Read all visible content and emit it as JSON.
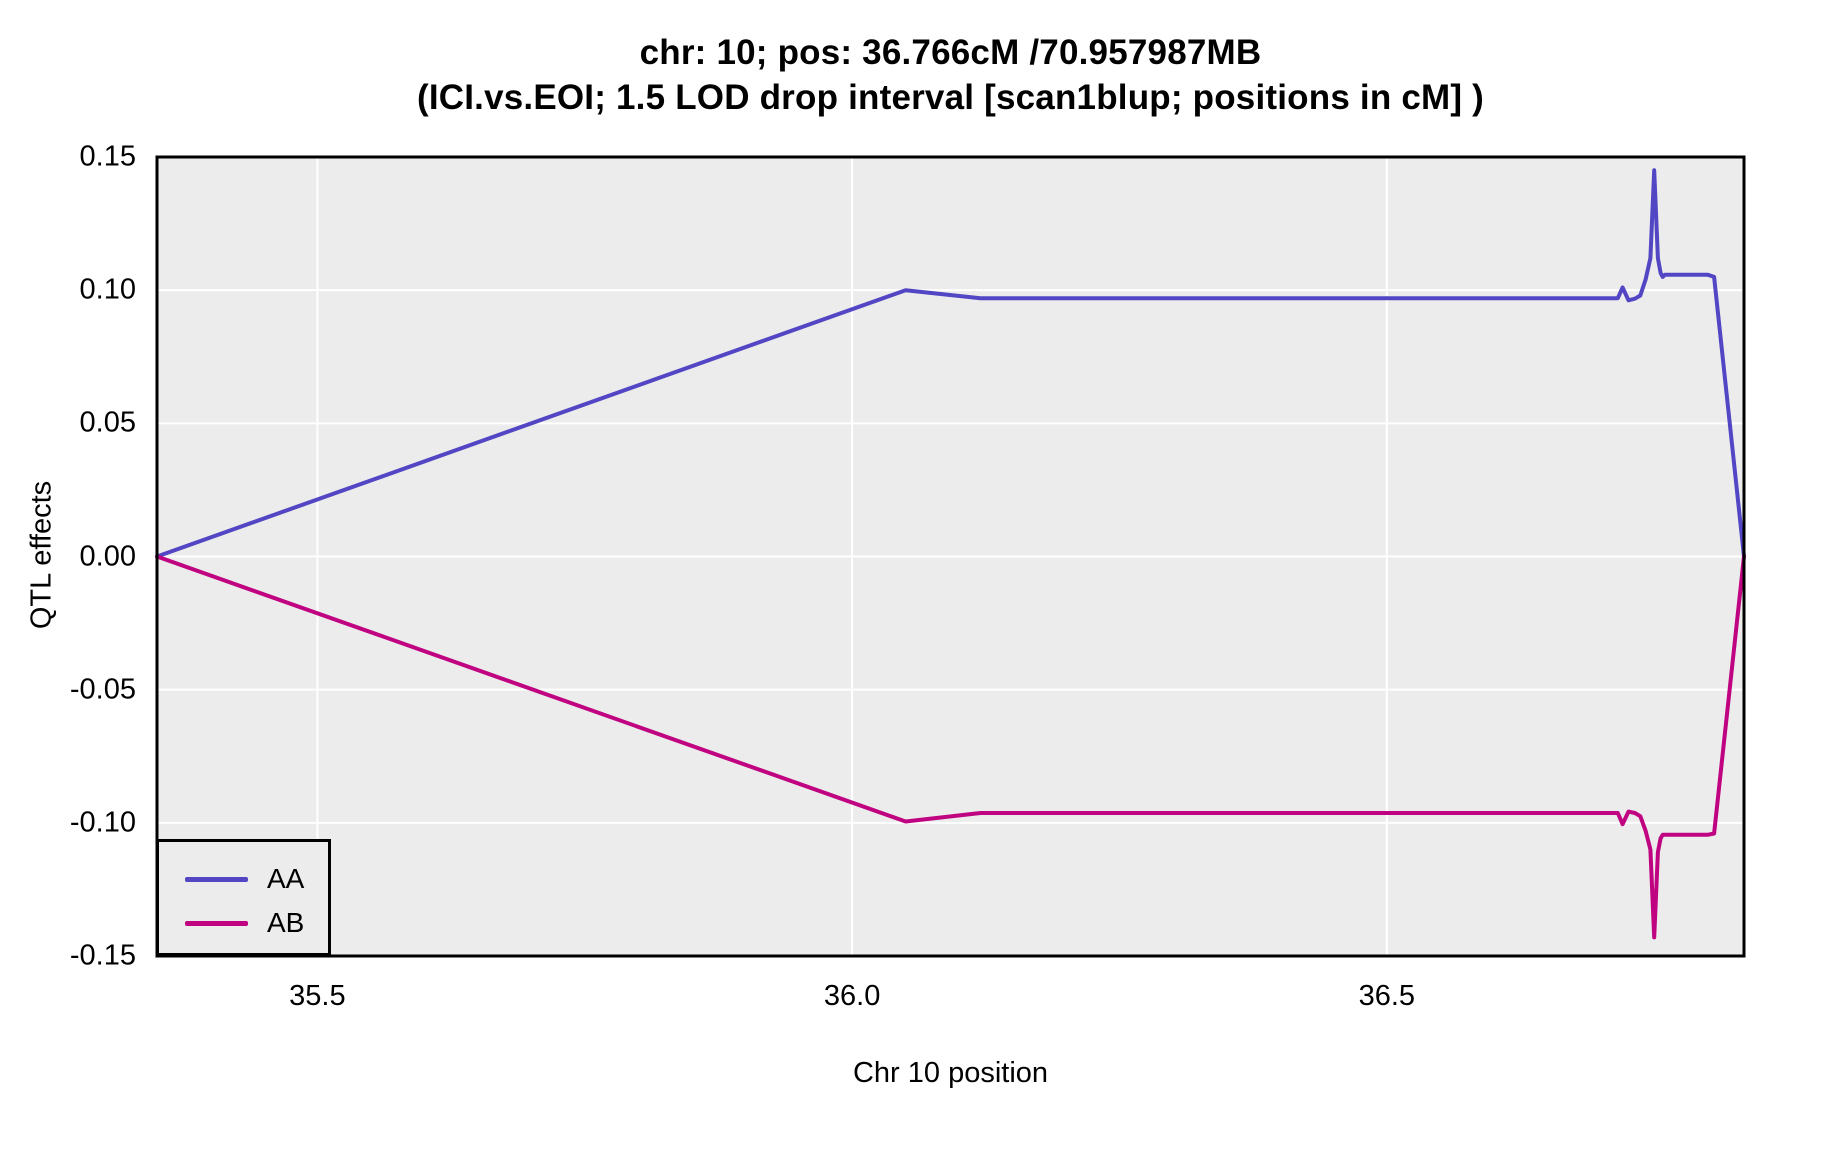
{
  "titles": {
    "line1": "chr: 10; pos: 36.766cM /70.957987MB",
    "line2": "(ICI.vs.EOI; 1.5 LOD drop interval [scan1blup; positions in cM] )"
  },
  "axes": {
    "x": {
      "label": "Chr 10 position",
      "ticks": [
        35.5,
        36.0,
        36.5
      ],
      "tick_labels": [
        "35.5",
        "36.0",
        "36.5"
      ]
    },
    "y": {
      "label": "QTL effects",
      "ticks": [
        0.15,
        0.1,
        0.05,
        0.0,
        -0.05,
        -0.1,
        -0.15
      ],
      "tick_labels": [
        "0.15",
        "0.10",
        "0.05",
        "0.00",
        "-0.05",
        "-0.10",
        "-0.15"
      ]
    }
  },
  "legend": {
    "items": [
      {
        "label": "AA",
        "color": "#5246C4"
      },
      {
        "label": "AB",
        "color": "#C00380"
      }
    ]
  },
  "colors": {
    "page_bg": "#FFFFFF",
    "panel_bg": "#ECECEC",
    "grid": "#FFFFFF",
    "border": "#000000",
    "text": "#000000",
    "series_aa": "#5246C4",
    "series_ab": "#C00380"
  },
  "chart_data": {
    "type": "line",
    "title": "chr: 10; pos: 36.766cM /70.957987MB",
    "subtitle": "(ICI.vs.EOI; 1.5 LOD drop interval [scan1blup; positions in cM] )",
    "xlabel": "Chr 10 position",
    "ylabel": "QTL effects",
    "xlim": [
      35.35,
      36.834
    ],
    "ylim": [
      -0.15,
      0.15
    ],
    "grid": "major-only, white lines on gray panel",
    "legend_position": "bottom-left",
    "series": [
      {
        "name": "AA",
        "color": "#5246C4",
        "x": [
          35.35,
          36.05,
          36.12,
          36.7,
          36.716,
          36.7205,
          36.726,
          36.732,
          36.737,
          36.742,
          36.7465,
          36.75,
          36.7535,
          36.756,
          36.758,
          36.76,
          36.8,
          36.806,
          36.834
        ],
        "y": [
          0.0,
          0.1,
          0.097,
          0.097,
          0.097,
          0.101,
          0.0962,
          0.0968,
          0.098,
          0.104,
          0.112,
          0.145,
          0.112,
          0.1065,
          0.105,
          0.1058,
          0.1058,
          0.105,
          0.0
        ]
      },
      {
        "name": "AB",
        "color": "#C00380",
        "x": [
          35.35,
          36.05,
          36.12,
          36.7,
          36.716,
          36.7205,
          36.726,
          36.732,
          36.737,
          36.742,
          36.7465,
          36.75,
          36.7535,
          36.756,
          36.758,
          36.8,
          36.806,
          36.834
        ],
        "y": [
          0.0,
          -0.0995,
          -0.0963,
          -0.0963,
          -0.0963,
          -0.1005,
          -0.0958,
          -0.0963,
          -0.0975,
          -0.103,
          -0.11,
          -0.143,
          -0.111,
          -0.1058,
          -0.1045,
          -0.1045,
          -0.104,
          0.0
        ]
      }
    ]
  }
}
